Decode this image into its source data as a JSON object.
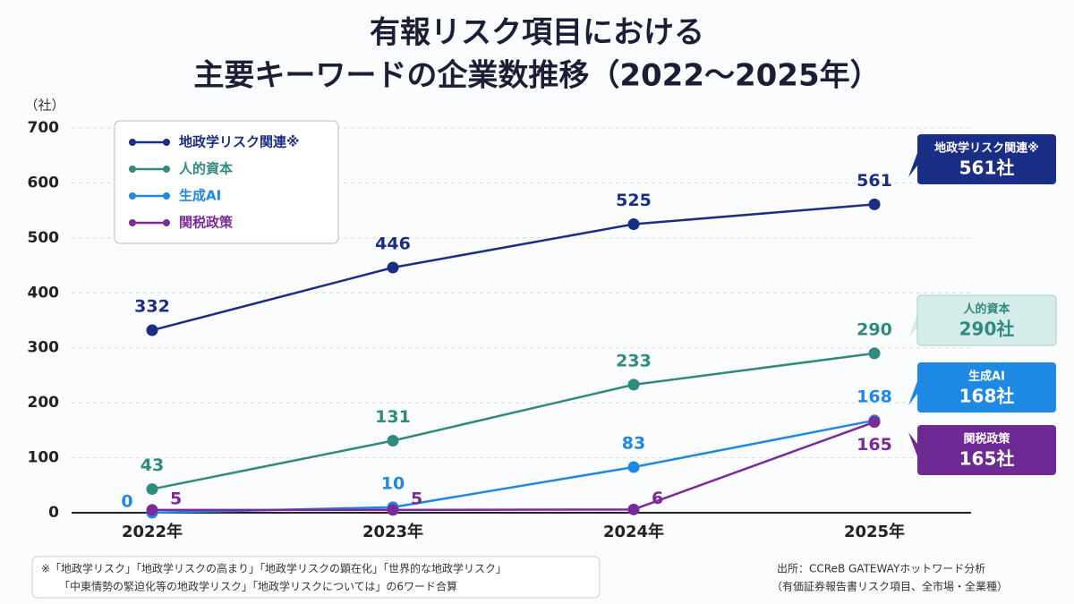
{
  "chart_data": {
    "type": "line",
    "title": [
      "有報リスク項目における",
      "主要キーワードの企業数推移（2022〜2025年）"
    ],
    "y_unit_label": "（社）",
    "categories": [
      "2022年",
      "2023年",
      "2024年",
      "2025年"
    ],
    "series": [
      {
        "name": "地政学リスク関連※",
        "color": "#1b2e86",
        "values": [
          332,
          446,
          525,
          561
        ],
        "end_label": "561社"
      },
      {
        "name": "人的資本",
        "color": "#2f8a80",
        "values": [
          43,
          131,
          233,
          290
        ],
        "end_label": "290社"
      },
      {
        "name": "生成AI",
        "color": "#1e88e5",
        "values": [
          0,
          10,
          83,
          168
        ],
        "end_label": "168社"
      },
      {
        "name": "関税政策",
        "color": "#7b2a9a",
        "values": [
          5,
          5,
          6,
          165
        ],
        "end_label": "165社"
      }
    ],
    "ylim": [
      0,
      700
    ],
    "yticks": [
      0,
      100,
      200,
      300,
      400,
      500,
      600,
      700
    ],
    "grid": true,
    "legend": "top-left",
    "footnote": [
      "※「地政学リスク」「地政学リスクの高まり」「地政学リスクの顕在化」「世界的な地政学リスク」",
      "「中東情勢の緊迫化等の地政学リスク」「地政学リスクについては」の6ワード合算"
    ],
    "source": [
      "出所：CCReB GATEWAYホットワード分析",
      "（有価証券報告書リスク項目、全市場・全業種）"
    ]
  }
}
